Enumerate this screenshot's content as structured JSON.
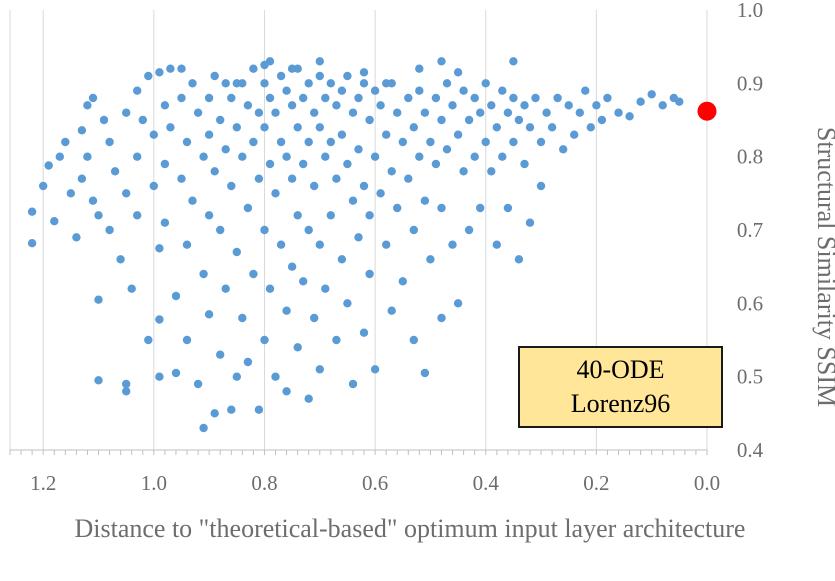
{
  "chart_data": {
    "type": "scatter",
    "title": "",
    "xlabel": "Distance to \"theoretical-based\" optimum input layer architecture",
    "ylabel": "Structural Similarity SSIM",
    "xlim": [
      1.26,
      0.0
    ],
    "ylim": [
      0.4,
      1.0
    ],
    "x_reversed": true,
    "x_ticks": [
      "1.2",
      "1.0",
      "0.8",
      "0.6",
      "0.4",
      "0.2",
      "0.0"
    ],
    "y_ticks": [
      "0.4",
      "0.5",
      "0.6",
      "0.7",
      "0.8",
      "0.9",
      "1.0"
    ],
    "grid": "vertical",
    "point_color": "#5b9bd5",
    "highlight_color": "#ff0000",
    "annotation": {
      "line1": "40-ODE",
      "line2": "Lorenz96"
    },
    "highlight": {
      "x": 0.0,
      "y": 0.862
    },
    "series": [
      {
        "points": [
          [
            1.22,
            0.725
          ],
          [
            1.22,
            0.682
          ],
          [
            1.2,
            0.76
          ],
          [
            1.19,
            0.788
          ],
          [
            1.18,
            0.712
          ],
          [
            1.17,
            0.8
          ],
          [
            1.16,
            0.82
          ],
          [
            1.15,
            0.75
          ],
          [
            1.14,
            0.69
          ],
          [
            1.13,
            0.836
          ],
          [
            1.13,
            0.77
          ],
          [
            1.12,
            0.87
          ],
          [
            1.12,
            0.8
          ],
          [
            1.11,
            0.88
          ],
          [
            1.11,
            0.74
          ],
          [
            1.1,
            0.605
          ],
          [
            1.1,
            0.495
          ],
          [
            1.1,
            0.72
          ],
          [
            1.09,
            0.85
          ],
          [
            1.08,
            0.82
          ],
          [
            1.08,
            0.7
          ],
          [
            1.07,
            0.78
          ],
          [
            1.06,
            0.66
          ],
          [
            1.05,
            0.86
          ],
          [
            1.05,
            0.75
          ],
          [
            1.05,
            0.49
          ],
          [
            1.05,
            0.48
          ],
          [
            1.04,
            0.62
          ],
          [
            1.03,
            0.89
          ],
          [
            1.03,
            0.8
          ],
          [
            1.03,
            0.72
          ],
          [
            1.02,
            0.85
          ],
          [
            1.01,
            0.91
          ],
          [
            1.01,
            0.55
          ],
          [
            1.0,
            0.83
          ],
          [
            1.0,
            0.76
          ],
          [
            0.99,
            0.675
          ],
          [
            0.99,
            0.578
          ],
          [
            0.99,
            0.5
          ],
          [
            0.98,
            0.87
          ],
          [
            0.98,
            0.79
          ],
          [
            0.98,
            0.71
          ],
          [
            0.97,
            0.92
          ],
          [
            0.97,
            0.84
          ],
          [
            0.96,
            0.505
          ],
          [
            0.96,
            0.61
          ],
          [
            0.95,
            0.88
          ],
          [
            0.95,
            0.77
          ],
          [
            0.94,
            0.82
          ],
          [
            0.94,
            0.68
          ],
          [
            0.94,
            0.55
          ],
          [
            0.93,
            0.9
          ],
          [
            0.93,
            0.74
          ],
          [
            0.92,
            0.86
          ],
          [
            0.92,
            0.49
          ],
          [
            0.91,
            0.43
          ],
          [
            0.91,
            0.8
          ],
          [
            0.91,
            0.64
          ],
          [
            0.9,
            0.83
          ],
          [
            0.9,
            0.72
          ],
          [
            0.9,
            0.585
          ],
          [
            0.89,
            0.91
          ],
          [
            0.89,
            0.78
          ],
          [
            0.89,
            0.45
          ],
          [
            0.88,
            0.85
          ],
          [
            0.88,
            0.7
          ],
          [
            0.88,
            0.53
          ],
          [
            0.87,
            0.9
          ],
          [
            0.87,
            0.81
          ],
          [
            0.87,
            0.62
          ],
          [
            0.86,
            0.88
          ],
          [
            0.86,
            0.76
          ],
          [
            0.86,
            0.455
          ],
          [
            0.85,
            0.84
          ],
          [
            0.85,
            0.67
          ],
          [
            0.85,
            0.5
          ],
          [
            0.84,
            0.9
          ],
          [
            0.84,
            0.8
          ],
          [
            0.84,
            0.58
          ],
          [
            0.83,
            0.87
          ],
          [
            0.83,
            0.73
          ],
          [
            0.83,
            0.52
          ],
          [
            0.82,
            0.92
          ],
          [
            0.82,
            0.82
          ],
          [
            0.82,
            0.64
          ],
          [
            0.81,
            0.86
          ],
          [
            0.81,
            0.77
          ],
          [
            0.81,
            0.455
          ],
          [
            0.8,
            0.9
          ],
          [
            0.8,
            0.84
          ],
          [
            0.8,
            0.7
          ],
          [
            0.8,
            0.55
          ],
          [
            0.79,
            0.93
          ],
          [
            0.79,
            0.88
          ],
          [
            0.79,
            0.79
          ],
          [
            0.79,
            0.62
          ],
          [
            0.78,
            0.86
          ],
          [
            0.78,
            0.75
          ],
          [
            0.78,
            0.5
          ],
          [
            0.77,
            0.91
          ],
          [
            0.77,
            0.82
          ],
          [
            0.77,
            0.68
          ],
          [
            0.76,
            0.89
          ],
          [
            0.76,
            0.8
          ],
          [
            0.76,
            0.59
          ],
          [
            0.76,
            0.48
          ],
          [
            0.75,
            0.87
          ],
          [
            0.75,
            0.77
          ],
          [
            0.75,
            0.65
          ],
          [
            0.74,
            0.92
          ],
          [
            0.74,
            0.84
          ],
          [
            0.74,
            0.72
          ],
          [
            0.74,
            0.54
          ],
          [
            0.73,
            0.88
          ],
          [
            0.73,
            0.79
          ],
          [
            0.73,
            0.63
          ],
          [
            0.72,
            0.9
          ],
          [
            0.72,
            0.82
          ],
          [
            0.72,
            0.7
          ],
          [
            0.72,
            0.47
          ],
          [
            0.71,
            0.86
          ],
          [
            0.71,
            0.76
          ],
          [
            0.71,
            0.58
          ],
          [
            0.7,
            0.91
          ],
          [
            0.7,
            0.84
          ],
          [
            0.7,
            0.68
          ],
          [
            0.7,
            0.51
          ],
          [
            0.69,
            0.88
          ],
          [
            0.69,
            0.8
          ],
          [
            0.69,
            0.62
          ],
          [
            0.68,
            0.9
          ],
          [
            0.68,
            0.82
          ],
          [
            0.68,
            0.72
          ],
          [
            0.67,
            0.87
          ],
          [
            0.67,
            0.77
          ],
          [
            0.67,
            0.55
          ],
          [
            0.66,
            0.89
          ],
          [
            0.66,
            0.83
          ],
          [
            0.66,
            0.66
          ],
          [
            0.65,
            0.91
          ],
          [
            0.65,
            0.79
          ],
          [
            0.65,
            0.6
          ],
          [
            0.64,
            0.86
          ],
          [
            0.64,
            0.74
          ],
          [
            0.64,
            0.49
          ],
          [
            0.63,
            0.88
          ],
          [
            0.63,
            0.81
          ],
          [
            0.63,
            0.69
          ],
          [
            0.62,
            0.9
          ],
          [
            0.62,
            0.76
          ],
          [
            0.62,
            0.56
          ],
          [
            0.61,
            0.85
          ],
          [
            0.61,
            0.72
          ],
          [
            0.61,
            0.64
          ],
          [
            0.6,
            0.89
          ],
          [
            0.6,
            0.8
          ],
          [
            0.6,
            0.51
          ],
          [
            0.59,
            0.87
          ],
          [
            0.59,
            0.75
          ],
          [
            0.58,
            0.83
          ],
          [
            0.58,
            0.68
          ],
          [
            0.57,
            0.9
          ],
          [
            0.57,
            0.78
          ],
          [
            0.57,
            0.59
          ],
          [
            0.56,
            0.86
          ],
          [
            0.56,
            0.73
          ],
          [
            0.55,
            0.82
          ],
          [
            0.55,
            0.63
          ],
          [
            0.54,
            0.88
          ],
          [
            0.54,
            0.77
          ],
          [
            0.53,
            0.84
          ],
          [
            0.53,
            0.7
          ],
          [
            0.53,
            0.55
          ],
          [
            0.52,
            0.89
          ],
          [
            0.52,
            0.8
          ],
          [
            0.51,
            0.86
          ],
          [
            0.51,
            0.74
          ],
          [
            0.51,
            0.505
          ],
          [
            0.5,
            0.82
          ],
          [
            0.5,
            0.66
          ],
          [
            0.49,
            0.88
          ],
          [
            0.49,
            0.79
          ],
          [
            0.48,
            0.85
          ],
          [
            0.48,
            0.73
          ],
          [
            0.48,
            0.58
          ],
          [
            0.47,
            0.9
          ],
          [
            0.47,
            0.81
          ],
          [
            0.46,
            0.87
          ],
          [
            0.46,
            0.68
          ],
          [
            0.45,
            0.83
          ],
          [
            0.45,
            0.6
          ],
          [
            0.44,
            0.89
          ],
          [
            0.44,
            0.78
          ],
          [
            0.43,
            0.85
          ],
          [
            0.43,
            0.7
          ],
          [
            0.42,
            0.88
          ],
          [
            0.42,
            0.8
          ],
          [
            0.41,
            0.86
          ],
          [
            0.41,
            0.73
          ],
          [
            0.4,
            0.9
          ],
          [
            0.4,
            0.82
          ],
          [
            0.39,
            0.87
          ],
          [
            0.39,
            0.78
          ],
          [
            0.38,
            0.84
          ],
          [
            0.38,
            0.68
          ],
          [
            0.37,
            0.89
          ],
          [
            0.37,
            0.8
          ],
          [
            0.36,
            0.86
          ],
          [
            0.36,
            0.73
          ],
          [
            0.35,
            0.88
          ],
          [
            0.35,
            0.82
          ],
          [
            0.34,
            0.85
          ],
          [
            0.34,
            0.66
          ],
          [
            0.33,
            0.87
          ],
          [
            0.33,
            0.79
          ],
          [
            0.32,
            0.84
          ],
          [
            0.32,
            0.71
          ],
          [
            0.31,
            0.88
          ],
          [
            0.3,
            0.82
          ],
          [
            0.3,
            0.76
          ],
          [
            0.29,
            0.86
          ],
          [
            0.28,
            0.84
          ],
          [
            0.27,
            0.88
          ],
          [
            0.26,
            0.81
          ],
          [
            0.25,
            0.87
          ],
          [
            0.24,
            0.83
          ],
          [
            0.23,
            0.86
          ],
          [
            0.22,
            0.89
          ],
          [
            0.21,
            0.84
          ],
          [
            0.2,
            0.87
          ],
          [
            0.19,
            0.85
          ],
          [
            0.18,
            0.88
          ],
          [
            0.16,
            0.86
          ],
          [
            0.14,
            0.855
          ],
          [
            0.12,
            0.875
          ],
          [
            0.1,
            0.885
          ],
          [
            0.08,
            0.87
          ],
          [
            0.06,
            0.88
          ],
          [
            0.05,
            0.875
          ],
          [
            0.35,
            0.93
          ],
          [
            0.45,
            0.915
          ],
          [
            0.52,
            0.92
          ],
          [
            0.58,
            0.9
          ],
          [
            0.62,
            0.915
          ],
          [
            0.7,
            0.93
          ],
          [
            0.75,
            0.92
          ],
          [
            0.8,
            0.925
          ],
          [
            0.85,
            0.9
          ],
          [
            0.9,
            0.88
          ],
          [
            0.95,
            0.92
          ],
          [
            0.99,
            0.915
          ],
          [
            0.48,
            0.93
          ]
        ]
      }
    ]
  }
}
